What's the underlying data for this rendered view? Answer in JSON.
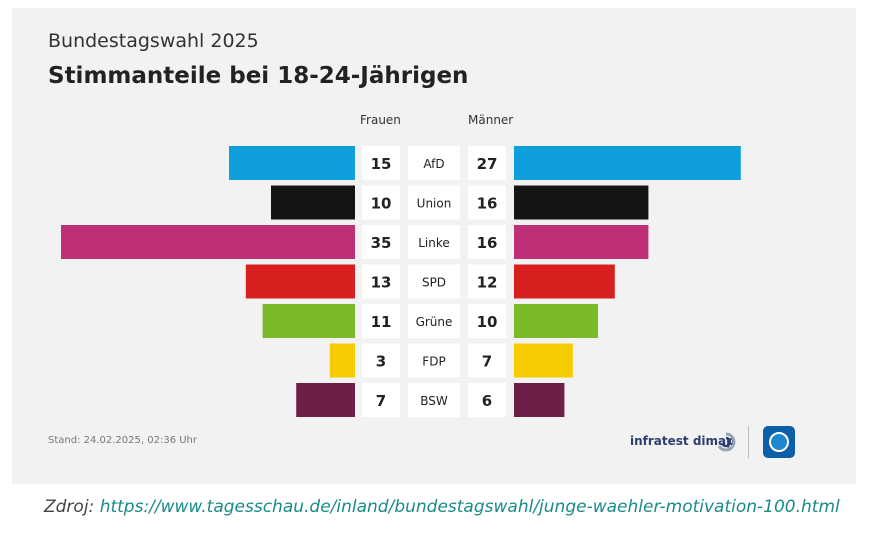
{
  "header": {
    "supertitle": "Bundestagswahl 2025",
    "title": "Stimmanteile bei 18-24-Jährigen"
  },
  "chart_data": {
    "type": "bar",
    "title": "Stimmanteile bei 18-24-Jährigen",
    "categories": [
      "AfD",
      "Union",
      "Linke",
      "SPD",
      "Grüne",
      "FDP",
      "BSW"
    ],
    "series": [
      {
        "name": "Frauen",
        "values": [
          15,
          10,
          35,
          13,
          11,
          3,
          7
        ]
      },
      {
        "name": "Männer",
        "values": [
          27,
          16,
          16,
          12,
          10,
          7,
          6
        ]
      }
    ],
    "colors": [
      "#0f9fdc",
      "#141414",
      "#bd3075",
      "#d71f1f",
      "#7ab928",
      "#f6cb00",
      "#6d1f48"
    ]
  },
  "footer": {
    "stand": "Stand:  24.02.2025, 02:36 Uhr",
    "source_logo": "infratest dimap",
    "broadcaster_logo_icon": "tagesschau-icon"
  },
  "caption": {
    "prefix": "Zdroj: ",
    "link": "https://www.tagesschau.de/inland/bundestagswahl/junge-waehler-motivation-100.html"
  }
}
